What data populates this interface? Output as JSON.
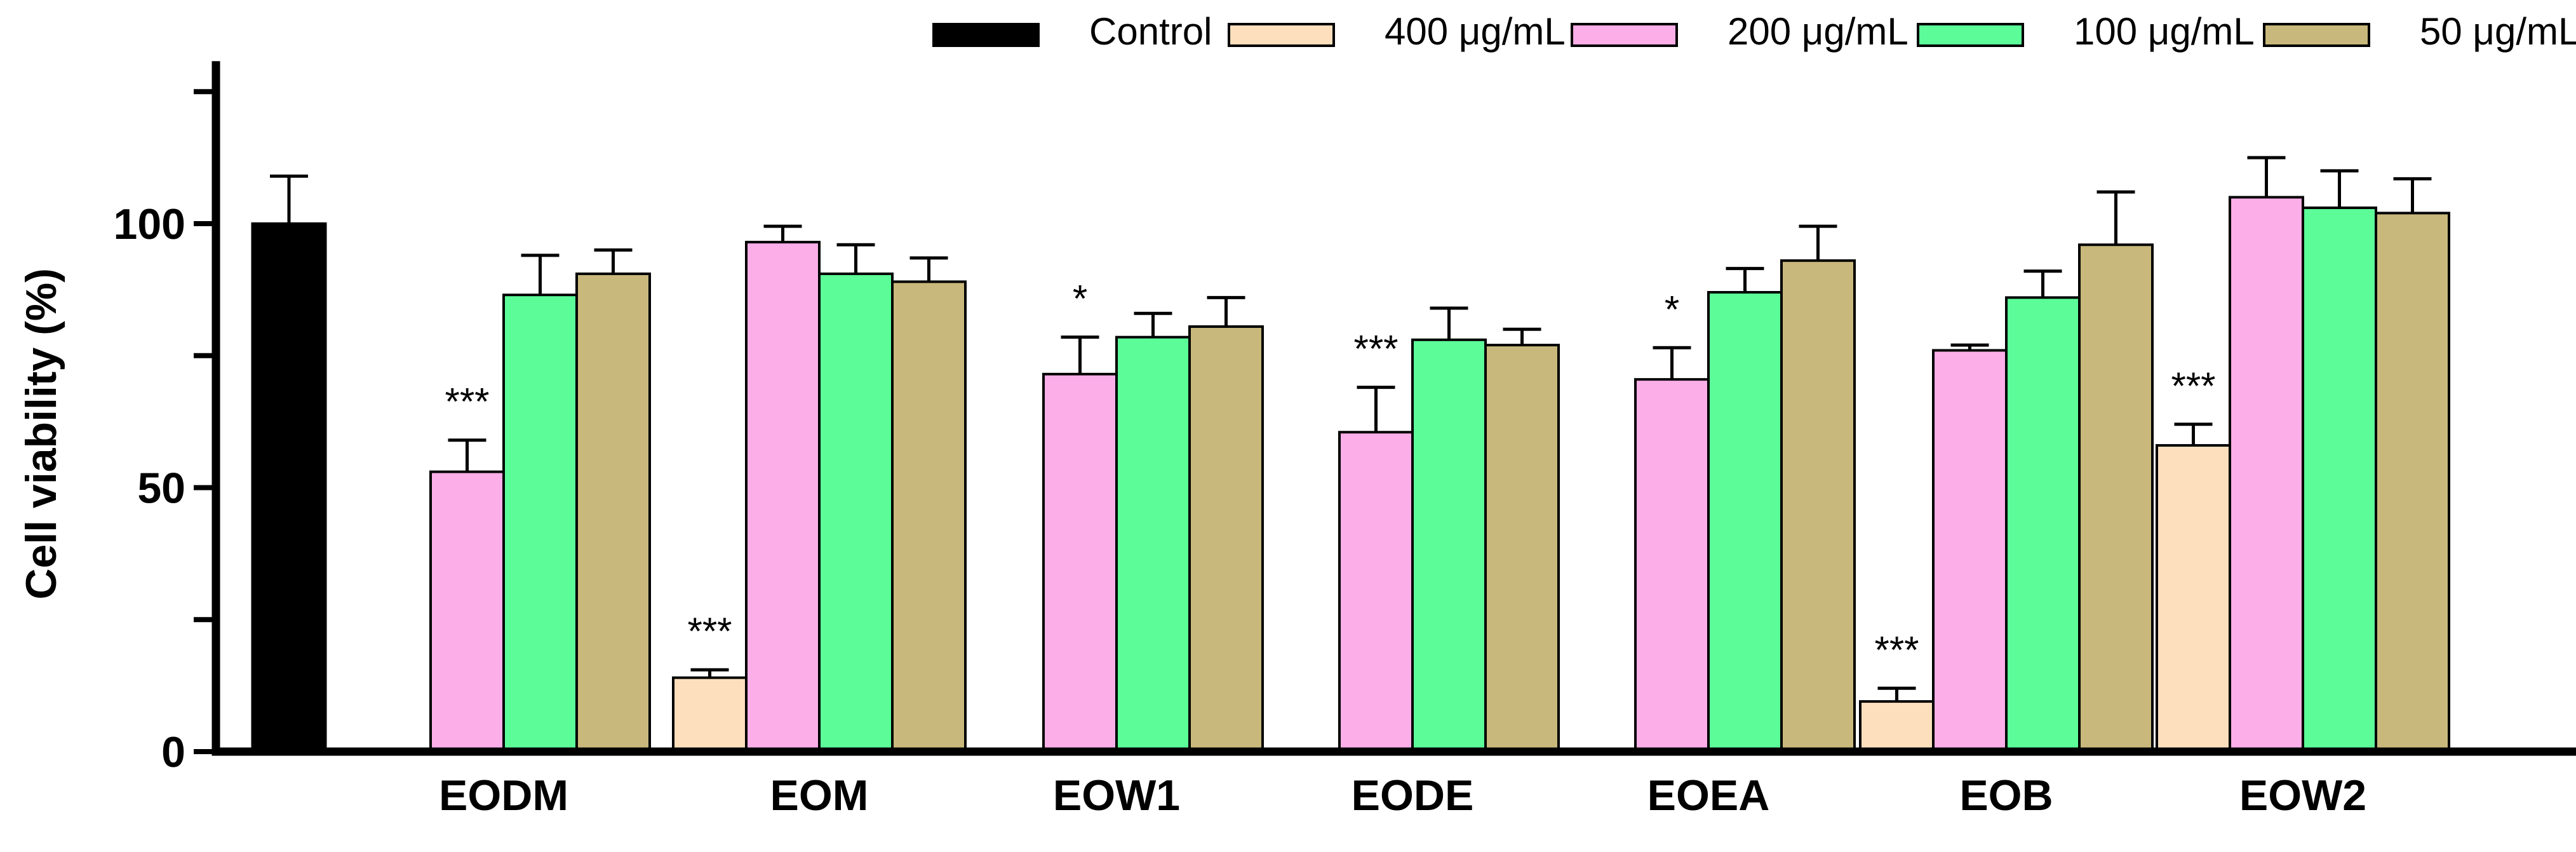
{
  "chart_data": {
    "type": "bar",
    "ylabel": "Cell viability (%)",
    "xlabel": "",
    "ylim": [
      0,
      130
    ],
    "yticks_labeled": [
      0,
      50,
      100
    ],
    "yticks_minor": [
      25,
      75,
      125
    ],
    "legend_position": "top-right",
    "legend": [
      "Control",
      "400 μg/mL",
      "200 μg/mL",
      "100 μg/mL",
      "50 μg/mL"
    ],
    "colors": {
      "Control": "#000000",
      "400 μg/mL": "#FDDFBD",
      "200 μg/mL": "#FCAEE8",
      "100 μg/mL": "#5CFD99",
      "50 μg/mL": "#C8B87B"
    },
    "groups": [
      {
        "name": "Control",
        "label": "",
        "bars": [
          {
            "series": "Control",
            "value": 100,
            "err": 9
          }
        ]
      },
      {
        "name": "EODM",
        "label": "EODM",
        "bars": [
          {
            "series": "200 μg/mL",
            "value": 53,
            "err": 6,
            "annotation": "***"
          },
          {
            "series": "100 μg/mL",
            "value": 86.5,
            "err": 7.5
          },
          {
            "series": "50 μg/mL",
            "value": 90.5,
            "err": 4.5
          }
        ]
      },
      {
        "name": "EOM",
        "label": "EOM",
        "bars": [
          {
            "series": "400 μg/mL",
            "value": 14,
            "err": 1.5,
            "annotation": "***"
          },
          {
            "series": "200 μg/mL",
            "value": 96.5,
            "err": 3
          },
          {
            "series": "100 μg/mL",
            "value": 90.5,
            "err": 5.5
          },
          {
            "series": "50 μg/mL",
            "value": 89,
            "err": 4.5
          }
        ]
      },
      {
        "name": "EOW1",
        "label": "EOW1",
        "bars": [
          {
            "series": "200 μg/mL",
            "value": 71.5,
            "err": 7,
            "annotation": "*"
          },
          {
            "series": "100 μg/mL",
            "value": 78.5,
            "err": 4.5
          },
          {
            "series": "50 μg/mL",
            "value": 80.5,
            "err": 5.5
          }
        ]
      },
      {
        "name": "EODE",
        "label": "EODE",
        "bars": [
          {
            "series": "200 μg/mL",
            "value": 60.5,
            "err": 8.5,
            "annotation": "***"
          },
          {
            "series": "100 μg/mL",
            "value": 78,
            "err": 6
          },
          {
            "series": "50 μg/mL",
            "value": 77,
            "err": 3
          }
        ]
      },
      {
        "name": "EOEA",
        "label": "EOEA",
        "bars": [
          {
            "series": "200 μg/mL",
            "value": 70.5,
            "err": 6,
            "annotation": "*"
          },
          {
            "series": "100 μg/mL",
            "value": 87,
            "err": 4.5
          },
          {
            "series": "50 μg/mL",
            "value": 93,
            "err": 6.5
          }
        ]
      },
      {
        "name": "EOB",
        "label": "EOB",
        "bars": [
          {
            "series": "400 μg/mL",
            "value": 9.5,
            "err": 2.5,
            "annotation": "***"
          },
          {
            "series": "200 μg/mL",
            "value": 76,
            "err": 1
          },
          {
            "series": "100 μg/mL",
            "value": 86,
            "err": 5
          },
          {
            "series": "50 μg/mL",
            "value": 96,
            "err": 10
          }
        ]
      },
      {
        "name": "EOW2",
        "label": "EOW2",
        "bars": [
          {
            "series": "400 μg/mL",
            "value": 58,
            "err": 4,
            "annotation": "***"
          },
          {
            "series": "200 μg/mL",
            "value": 105,
            "err": 7.5
          },
          {
            "series": "100 μg/mL",
            "value": 103,
            "err": 7
          },
          {
            "series": "50 μg/mL",
            "value": 102,
            "err": 6.5
          }
        ]
      }
    ]
  }
}
